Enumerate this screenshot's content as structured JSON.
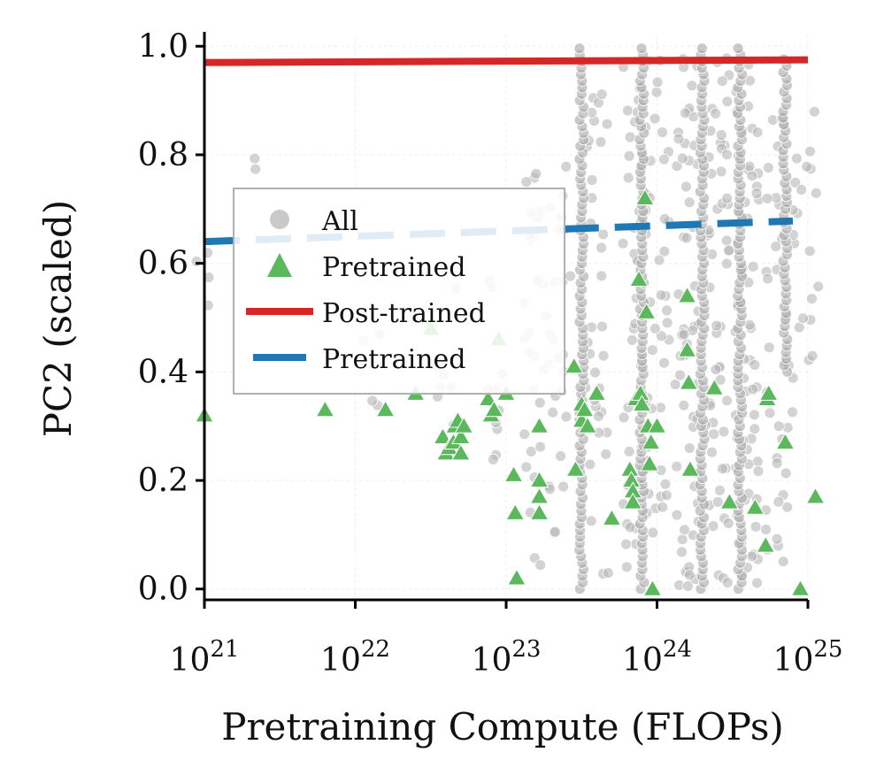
{
  "chart_data": {
    "type": "scatter",
    "title": "",
    "xlabel": "Pretraining Compute (FLOPs)",
    "ylabel": "PC2 (scaled)",
    "xscale": "log10",
    "xlim_exp": [
      21,
      25
    ],
    "ylim": [
      -0.02,
      1.02
    ],
    "x_ticks": [
      {
        "base": "10",
        "exp": "21",
        "value": 21
      },
      {
        "base": "10",
        "exp": "22",
        "value": 22
      },
      {
        "base": "10",
        "exp": "23",
        "value": 23
      },
      {
        "base": "10",
        "exp": "24",
        "value": 24
      },
      {
        "base": "10",
        "exp": "25",
        "value": 25
      }
    ],
    "y_ticks": [
      {
        "label": "0.0",
        "value": 0.0
      },
      {
        "label": "0.2",
        "value": 0.2
      },
      {
        "label": "0.4",
        "value": 0.4
      },
      {
        "label": "0.6",
        "value": 0.6
      },
      {
        "label": "0.8",
        "value": 0.8
      },
      {
        "label": "1.0",
        "value": 1.0
      }
    ],
    "grid": true,
    "legend_position": "center-left",
    "legend": [
      {
        "label": "All",
        "kind": "marker-circle",
        "color": "#b8b8b8"
      },
      {
        "label": "Pretrained",
        "kind": "marker-triangle",
        "color": "#5cb85c"
      },
      {
        "label": "Post-trained",
        "kind": "line-solid",
        "color": "#d62728"
      },
      {
        "label": "Pretrained",
        "kind": "line-dashed",
        "color": "#1f77b4"
      }
    ],
    "series": [
      {
        "name": "All",
        "kind": "scatter",
        "color": "#b8b8b8",
        "clusters": [
          {
            "log_x": 21.0,
            "y_min": 0.48,
            "y_max": 0.62,
            "n": 4
          },
          {
            "log_x": 21.3,
            "y_min": 0.76,
            "y_max": 0.8,
            "n": 2
          },
          {
            "log_x": 22.1,
            "y_min": 0.3,
            "y_max": 0.5,
            "n": 4
          },
          {
            "log_x": 22.6,
            "y_min": 0.24,
            "y_max": 0.6,
            "n": 8
          },
          {
            "log_x": 22.9,
            "y_min": 0.2,
            "y_max": 0.62,
            "n": 10
          },
          {
            "log_x": 23.2,
            "y_min": 0.04,
            "y_max": 0.8,
            "n": 30
          },
          {
            "log_x": 23.35,
            "y_min": 0.1,
            "y_max": 0.78,
            "n": 24
          },
          {
            "log_x": 23.6,
            "y_min": 0.0,
            "y_max": 0.92,
            "n": 34
          },
          {
            "log_x": 23.85,
            "y_min": 0.0,
            "y_max": 0.97,
            "n": 40
          },
          {
            "log_x": 24.0,
            "y_min": 0.1,
            "y_max": 0.99,
            "n": 44
          },
          {
            "log_x": 24.2,
            "y_min": 0.0,
            "y_max": 1.0,
            "n": 60
          },
          {
            "log_x": 24.4,
            "y_min": 0.0,
            "y_max": 0.98,
            "n": 55
          },
          {
            "log_x": 24.6,
            "y_min": 0.0,
            "y_max": 1.0,
            "n": 62
          },
          {
            "log_x": 24.8,
            "y_min": 0.05,
            "y_max": 0.96,
            "n": 34
          },
          {
            "log_x": 24.95,
            "y_min": 0.3,
            "y_max": 0.9,
            "n": 12
          },
          {
            "log_x": 25.0,
            "y_min": 0.42,
            "y_max": 0.9,
            "n": 10
          }
        ],
        "columns": [
          {
            "log_x": 23.5,
            "y_min": 0.0,
            "y_max": 1.0
          },
          {
            "log_x": 23.9,
            "y_min": 0.0,
            "y_max": 1.0
          },
          {
            "log_x": 24.3,
            "y_min": 0.0,
            "y_max": 1.0
          },
          {
            "log_x": 24.55,
            "y_min": 0.0,
            "y_max": 1.0
          },
          {
            "log_x": 24.85,
            "y_min": 0.4,
            "y_max": 0.98
          }
        ]
      },
      {
        "name": "Pretrained",
        "kind": "scatter-triangle",
        "color": "#5cb85c",
        "points": [
          [
            21.0,
            0.32
          ],
          [
            21.8,
            0.33
          ],
          [
            22.2,
            0.33
          ],
          [
            22.4,
            0.36
          ],
          [
            22.5,
            0.48
          ],
          [
            22.58,
            0.28
          ],
          [
            22.6,
            0.25
          ],
          [
            22.62,
            0.26
          ],
          [
            22.65,
            0.27
          ],
          [
            22.66,
            0.3
          ],
          [
            22.68,
            0.31
          ],
          [
            22.7,
            0.28
          ],
          [
            22.7,
            0.25
          ],
          [
            22.72,
            0.3
          ],
          [
            22.88,
            0.35
          ],
          [
            22.9,
            0.32
          ],
          [
            22.92,
            0.33
          ],
          [
            22.95,
            0.46
          ],
          [
            23.0,
            0.36
          ],
          [
            23.05,
            0.21
          ],
          [
            23.06,
            0.14
          ],
          [
            23.07,
            0.02
          ],
          [
            23.22,
            0.2
          ],
          [
            23.22,
            0.17
          ],
          [
            23.22,
            0.14
          ],
          [
            23.22,
            0.3
          ],
          [
            23.45,
            0.41
          ],
          [
            23.46,
            0.22
          ],
          [
            23.5,
            0.34
          ],
          [
            23.5,
            0.31
          ],
          [
            23.52,
            0.33
          ],
          [
            23.54,
            0.3
          ],
          [
            23.6,
            0.36
          ],
          [
            23.7,
            0.13
          ],
          [
            23.82,
            0.22
          ],
          [
            23.83,
            0.2
          ],
          [
            23.84,
            0.18
          ],
          [
            23.84,
            0.16
          ],
          [
            23.86,
            0.35
          ],
          [
            23.88,
            0.57
          ],
          [
            23.89,
            0.36
          ],
          [
            23.9,
            0.34
          ],
          [
            23.92,
            0.72
          ],
          [
            23.93,
            0.51
          ],
          [
            23.94,
            0.3
          ],
          [
            23.95,
            0.23
          ],
          [
            23.96,
            0.27
          ],
          [
            23.97,
            0.0
          ],
          [
            24.0,
            0.3
          ],
          [
            24.2,
            0.54
          ],
          [
            24.2,
            0.44
          ],
          [
            24.21,
            0.38
          ],
          [
            24.22,
            0.22
          ],
          [
            24.38,
            0.37
          ],
          [
            24.48,
            0.16
          ],
          [
            24.65,
            0.15
          ],
          [
            24.72,
            0.08
          ],
          [
            24.73,
            0.35
          ],
          [
            24.74,
            0.36
          ],
          [
            24.85,
            0.27
          ],
          [
            24.95,
            0.0
          ],
          [
            25.05,
            0.17
          ]
        ]
      },
      {
        "name": "Post-trained",
        "kind": "line-solid",
        "color": "#d62728",
        "x": [
          21,
          25
        ],
        "y": [
          0.97,
          0.975
        ]
      },
      {
        "name": "Pretrained",
        "kind": "line-dashed",
        "color": "#1f77b4",
        "x": [
          21,
          24.9
        ],
        "y": [
          0.64,
          0.678
        ]
      }
    ]
  }
}
